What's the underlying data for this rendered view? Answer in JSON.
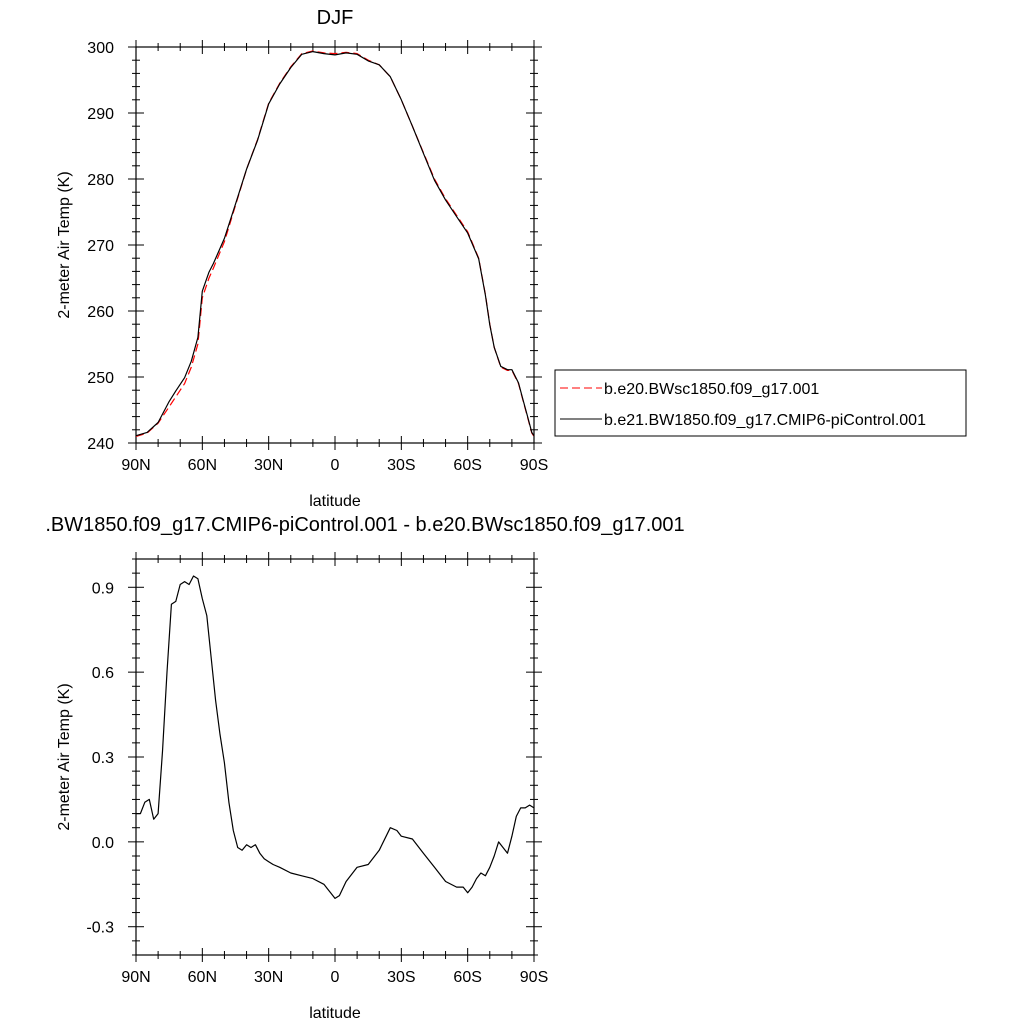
{
  "chart_data": [
    {
      "type": "line",
      "title": "DJF",
      "xlabel": "latitude",
      "ylabel": "2-meter Air Temp (K)",
      "x_ticks": [
        90,
        60,
        30,
        0,
        -30,
        -60,
        -90
      ],
      "x_tick_labels": [
        "90N",
        "60N",
        "30N",
        "0",
        "30S",
        "60S",
        "90S"
      ],
      "xlim": [
        90,
        -90
      ],
      "y_ticks": [
        240,
        250,
        260,
        270,
        280,
        290,
        300
      ],
      "y_tick_labels": [
        "240",
        "250",
        "260",
        "270",
        "280",
        "290",
        "300"
      ],
      "ylim": [
        240,
        300
      ],
      "grid": false,
      "legend_position": "outside-right",
      "series": [
        {
          "name": "b.e20.BWsc1850.f09_g17.001",
          "color": "#ff0000",
          "dash": true,
          "x": [
            90,
            85,
            80,
            75,
            72,
            70,
            68,
            65,
            62,
            60,
            57,
            55,
            50,
            45,
            40,
            35,
            30,
            25,
            20,
            15,
            10,
            5,
            0,
            -5,
            -10,
            -15,
            -20,
            -25,
            -30,
            -35,
            -40,
            -45,
            -50,
            -55,
            -60,
            -65,
            -68,
            -70,
            -72,
            -75,
            -78,
            -80,
            -83,
            -85,
            -87,
            -89,
            -90
          ],
          "y": [
            241.0,
            241.5,
            243.0,
            245.5,
            247.0,
            248.0,
            249.0,
            251.5,
            255.0,
            262.0,
            265.0,
            266.5,
            270.5,
            276.0,
            281.5,
            286.0,
            291.5,
            294.5,
            297.0,
            299.0,
            299.4,
            299.1,
            299.0,
            299.2,
            299.0,
            298.0,
            297.3,
            295.5,
            292.0,
            288.0,
            284.0,
            280.0,
            277.0,
            274.5,
            272.0,
            268.0,
            262.5,
            258.0,
            254.5,
            251.5,
            251.0,
            251.0,
            249.0,
            246.5,
            244.0,
            241.5,
            241.0
          ]
        },
        {
          "name": "b.e21.BW1850.f09_g17.CMIP6-piControl.001",
          "color": "#000000",
          "dash": false,
          "x": [
            90,
            85,
            80,
            75,
            72,
            70,
            68,
            65,
            62,
            60,
            57,
            55,
            50,
            45,
            40,
            35,
            30,
            25,
            20,
            15,
            10,
            5,
            0,
            -5,
            -10,
            -15,
            -20,
            -25,
            -30,
            -35,
            -40,
            -45,
            -50,
            -55,
            -60,
            -65,
            -68,
            -70,
            -72,
            -75,
            -78,
            -80,
            -83,
            -85,
            -87,
            -89,
            -90
          ],
          "y": [
            241.1,
            241.6,
            243.1,
            246.3,
            247.9,
            248.9,
            249.9,
            252.4,
            256.0,
            263.0,
            265.9,
            267.2,
            271.0,
            276.2,
            281.5,
            285.9,
            291.4,
            294.4,
            296.9,
            298.9,
            299.3,
            299.0,
            298.8,
            299.1,
            298.9,
            297.9,
            297.3,
            295.5,
            292.0,
            288.0,
            283.9,
            279.8,
            276.8,
            274.3,
            271.8,
            267.9,
            262.4,
            257.9,
            254.5,
            251.6,
            251.1,
            251.1,
            249.1,
            246.6,
            244.1,
            241.6,
            241.1
          ]
        }
      ]
    },
    {
      "type": "line",
      "title": ".BW1850.f09_g17.CMIP6-piControl.001 - b.e20.BWsc1850.f09_g17.001",
      "xlabel": "latitude",
      "ylabel": "2-meter Air Temp (K)",
      "x_ticks": [
        90,
        60,
        30,
        0,
        -30,
        -60,
        -90
      ],
      "x_tick_labels": [
        "90N",
        "60N",
        "30N",
        "0",
        "30S",
        "60S",
        "90S"
      ],
      "xlim": [
        90,
        -90
      ],
      "y_ticks": [
        -0.3,
        0,
        0.3,
        0.6,
        0.9
      ],
      "y_tick_labels": [
        "-0.3",
        "0.0",
        "0.3",
        "0.6",
        "0.9"
      ],
      "ylim": [
        -0.4,
        1.0
      ],
      "grid": false,
      "series": [
        {
          "color": "#000000",
          "dash": false,
          "x": [
            90,
            88,
            86,
            84,
            82,
            80,
            78,
            76,
            74,
            72,
            70,
            68,
            66,
            64,
            62,
            60,
            58,
            56,
            54,
            52,
            50,
            48,
            46,
            44,
            42,
            40,
            38,
            36,
            34,
            32,
            30,
            28,
            25,
            20,
            15,
            10,
            5,
            2,
            0,
            -2,
            -5,
            -10,
            -15,
            -20,
            -25,
            -28,
            -30,
            -35,
            -40,
            -45,
            -50,
            -55,
            -58,
            -60,
            -62,
            -64,
            -66,
            -68,
            -70,
            -72,
            -74,
            -76,
            -78,
            -80,
            -82,
            -84,
            -86,
            -88,
            -90
          ],
          "y": [
            0.1,
            0.1,
            0.14,
            0.15,
            0.08,
            0.1,
            0.32,
            0.6,
            0.84,
            0.85,
            0.91,
            0.92,
            0.91,
            0.94,
            0.93,
            0.86,
            0.8,
            0.65,
            0.5,
            0.38,
            0.28,
            0.14,
            0.04,
            -0.02,
            -0.03,
            -0.01,
            -0.02,
            -0.01,
            -0.04,
            -0.06,
            -0.07,
            -0.08,
            -0.09,
            -0.11,
            -0.12,
            -0.13,
            -0.15,
            -0.18,
            -0.2,
            -0.19,
            -0.14,
            -0.09,
            -0.08,
            -0.03,
            0.05,
            0.04,
            0.02,
            0.01,
            -0.04,
            -0.09,
            -0.14,
            -0.16,
            -0.16,
            -0.18,
            -0.16,
            -0.13,
            -0.11,
            -0.12,
            -0.09,
            -0.05,
            0.0,
            -0.02,
            -0.04,
            0.02,
            0.09,
            0.12,
            0.12,
            0.13,
            0.12
          ]
        }
      ]
    }
  ]
}
